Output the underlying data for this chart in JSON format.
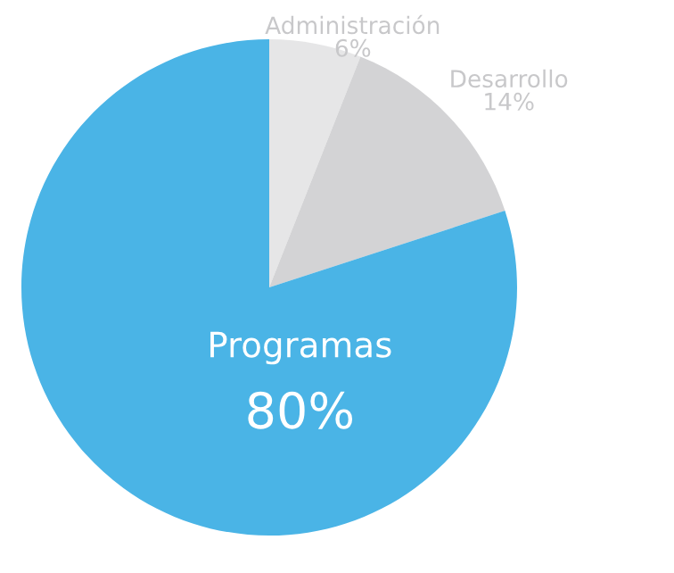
{
  "chart_data": {
    "type": "pie",
    "categories": [
      "Administración",
      "Desarrollo",
      "Programas"
    ],
    "values": [
      6,
      14,
      80
    ],
    "value_labels": [
      "6%",
      "14%",
      "80%"
    ],
    "colors": [
      "#e6e6e7",
      "#d3d3d5",
      "#4ab4e6"
    ]
  }
}
